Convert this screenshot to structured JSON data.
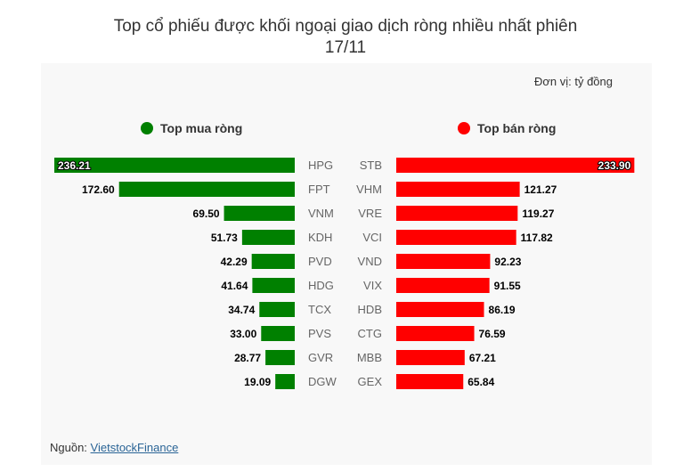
{
  "title_line1": "Top cổ phiếu được khối ngoại giao dịch ròng nhiều nhất phiên",
  "title_line2": "17/11",
  "unit": "Đơn vị: tỷ đồng",
  "source_label": "Nguồn: ",
  "source_link": "VietstockFinance",
  "colors": {
    "buy": "#008000",
    "sell": "#ff0000"
  },
  "chart_data": {
    "type": "bar",
    "legend_placement": "top",
    "series": [
      {
        "name": "Top mua ròng",
        "categories": [
          "HPG",
          "FPT",
          "VNM",
          "KDH",
          "PVD",
          "HDG",
          "TCX",
          "PVS",
          "GVR",
          "DGW"
        ],
        "values": [
          236.21,
          172.6,
          69.5,
          51.73,
          42.29,
          41.64,
          34.74,
          33.0,
          28.77,
          19.09
        ],
        "labels": [
          "236.21",
          "172.60",
          "69.50",
          "51.73",
          "42.29",
          "41.64",
          "34.74",
          "33.00",
          "28.77",
          "19.09"
        ]
      },
      {
        "name": "Top bán ròng",
        "categories": [
          "STB",
          "VHM",
          "VRE",
          "VCI",
          "VND",
          "VIX",
          "HDB",
          "CTG",
          "MBB",
          "GEX"
        ],
        "values": [
          233.9,
          121.27,
          119.27,
          117.82,
          92.23,
          91.55,
          86.19,
          76.59,
          67.21,
          65.84
        ],
        "labels": [
          "233.90",
          "121.27",
          "119.27",
          "117.82",
          "92.23",
          "91.55",
          "86.19",
          "76.59",
          "67.21",
          "65.84"
        ]
      }
    ]
  }
}
